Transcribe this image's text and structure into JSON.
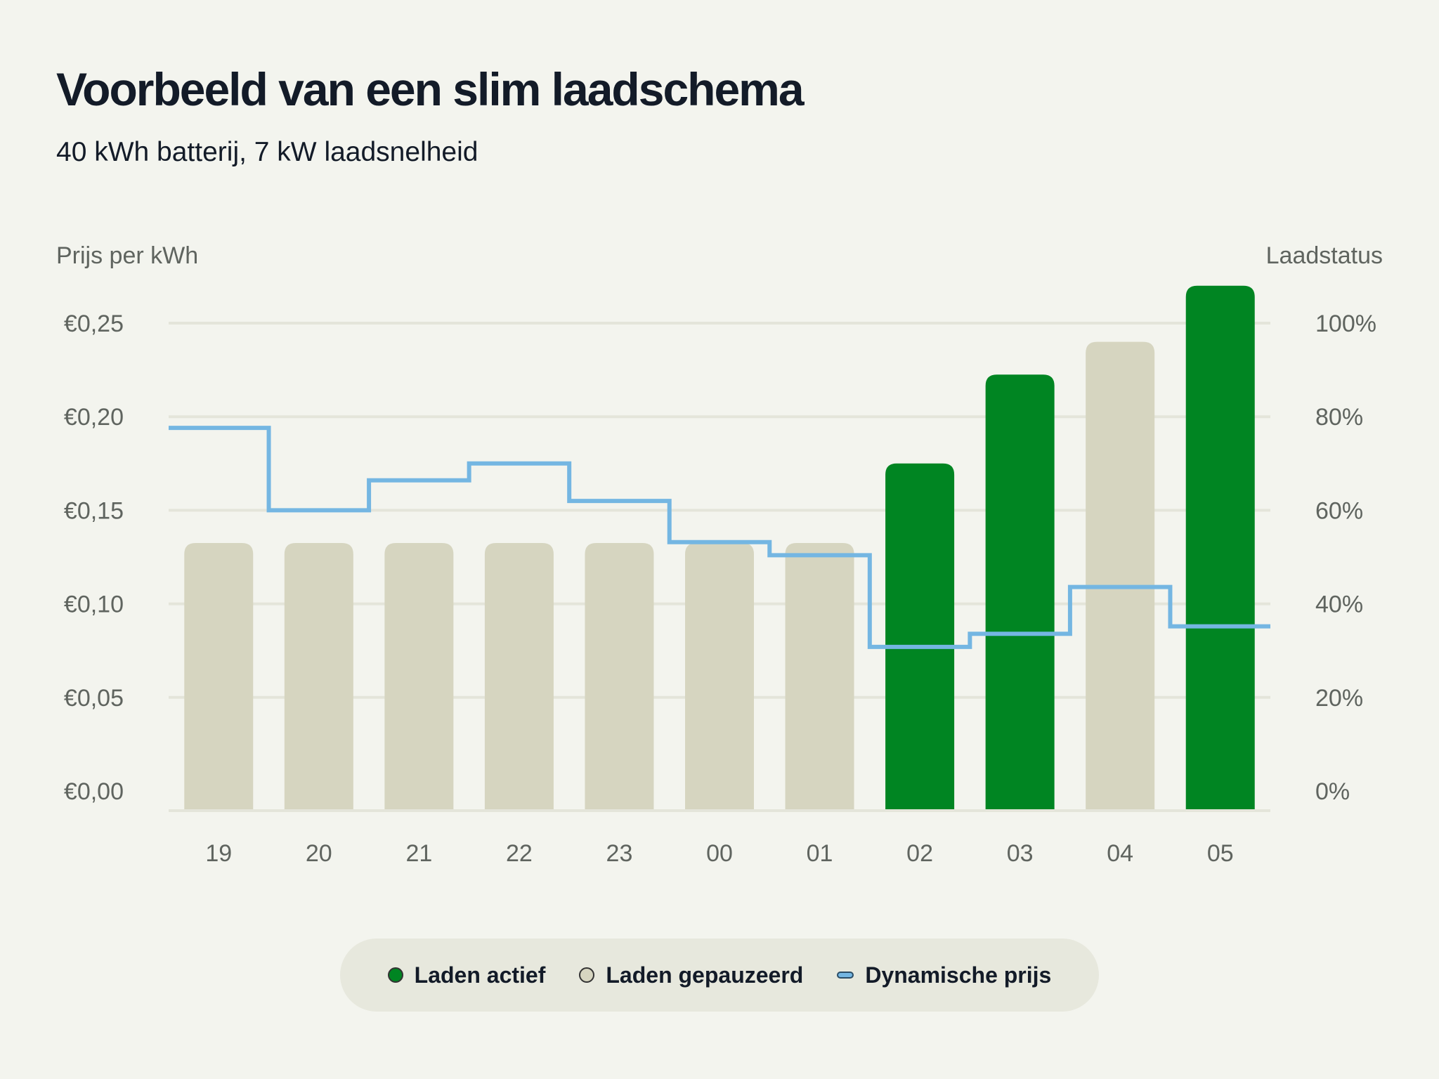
{
  "header": {
    "title": "Voorbeeld van een slim laadschema",
    "subtitle": "40 kWh batterij, 7 kW laadsnelheid"
  },
  "colors": {
    "active": "#008522",
    "paused": "#d6d5c0",
    "price": "#74b6e2",
    "grid": "#e4e5da"
  },
  "chart_data": {
    "type": "bar",
    "categories": [
      "19",
      "20",
      "21",
      "22",
      "23",
      "00",
      "01",
      "02",
      "03",
      "04",
      "05"
    ],
    "ylabel_left": "Prijs per kWh",
    "ylabel_right": "Laadstatus",
    "ylim_left": [
      0,
      0.25
    ],
    "ylim_right": [
      0,
      100
    ],
    "left_ticks": [
      "€0,00",
      "€0,05",
      "€0,10",
      "€0,15",
      "€0,20",
      "€0,25"
    ],
    "right_ticks": [
      "0%",
      "20%",
      "40%",
      "60%",
      "80%",
      "100%"
    ],
    "grid": true,
    "series": [
      {
        "name": "Laadstatus",
        "axis": "right",
        "values": [
          53,
          53,
          53,
          53,
          53,
          53,
          53,
          70,
          89,
          96,
          108
        ],
        "states": [
          "paused",
          "paused",
          "paused",
          "paused",
          "paused",
          "paused",
          "paused",
          "active",
          "active",
          "paused",
          "active"
        ]
      },
      {
        "name": "Dynamische prijs",
        "axis": "left",
        "type": "step",
        "values": [
          0.194,
          0.15,
          0.166,
          0.175,
          0.155,
          0.133,
          0.126,
          0.077,
          0.084,
          0.109,
          0.088
        ]
      }
    ]
  },
  "legend": {
    "items": [
      {
        "label": "Laden actief",
        "type": "dot",
        "state": "active"
      },
      {
        "label": "Laden gepauzeerd",
        "type": "dot",
        "state": "paused"
      },
      {
        "label": "Dynamische prijs",
        "type": "line",
        "state": "price"
      }
    ]
  }
}
